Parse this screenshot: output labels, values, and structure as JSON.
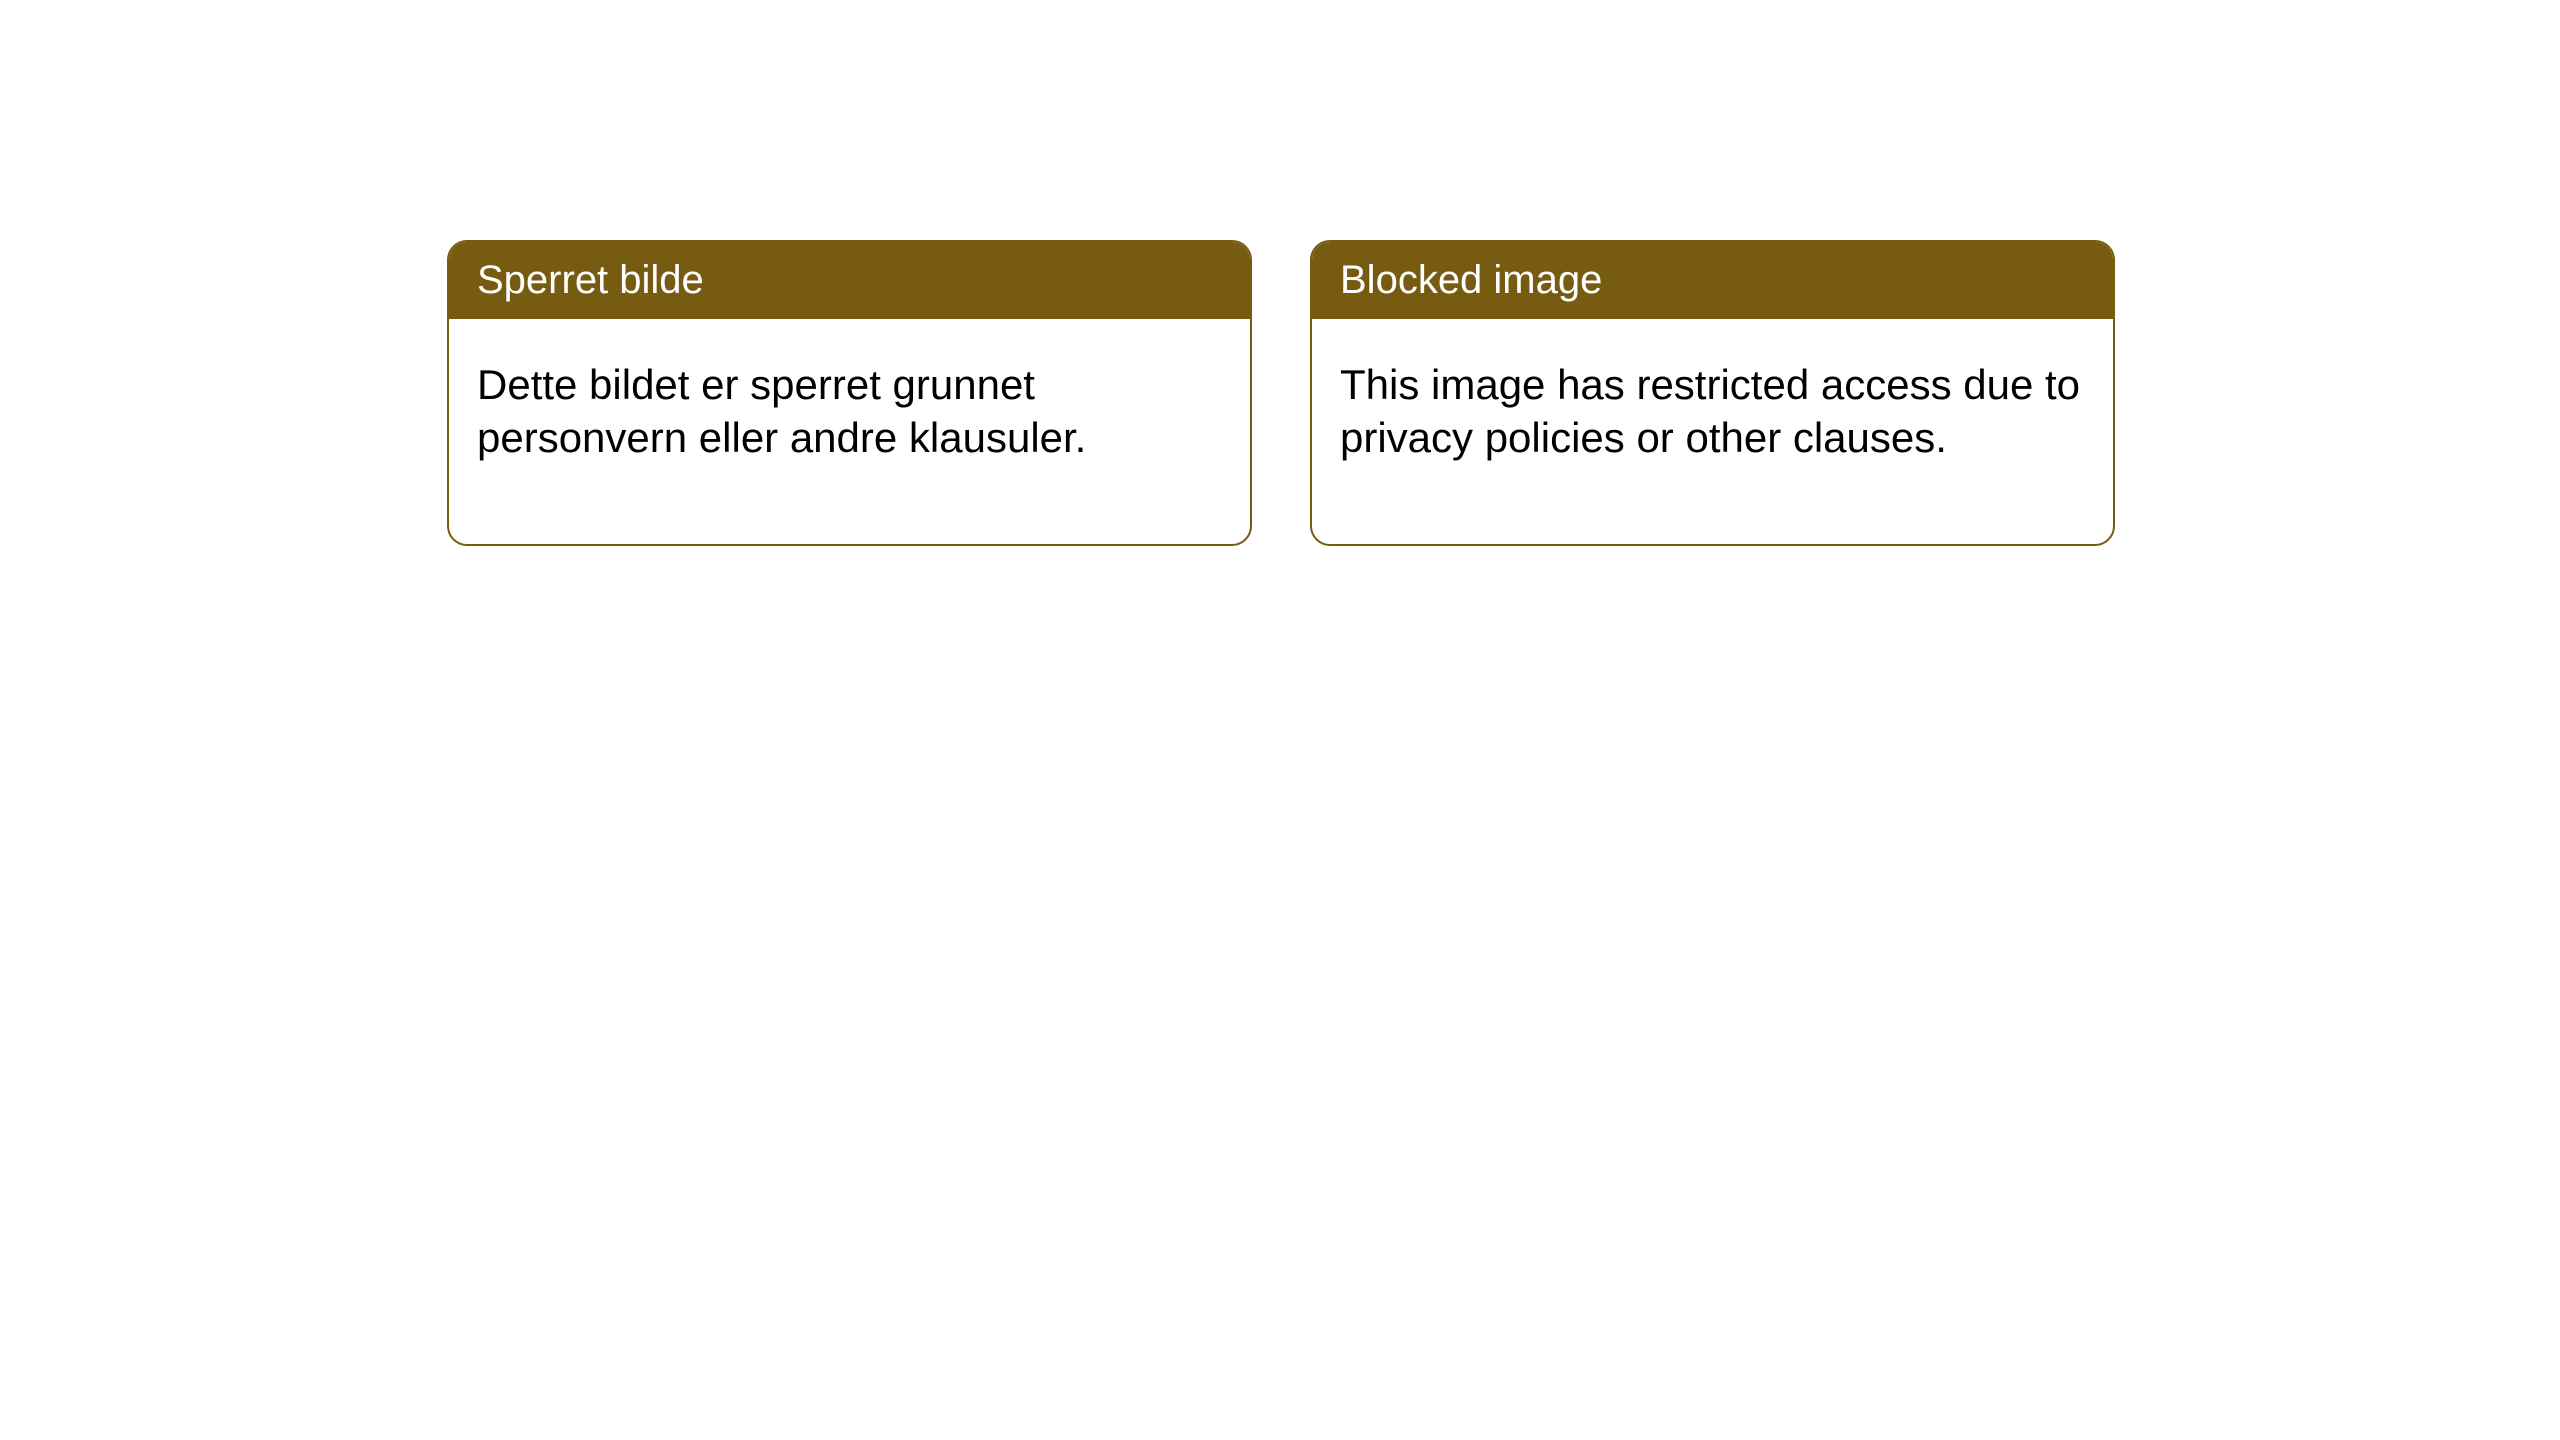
{
  "colors": {
    "header_bg": "#775b10",
    "header_text": "#ffffff",
    "card_border": "#775b10",
    "body_text": "#000000",
    "background": "#ffffff"
  },
  "cards": [
    {
      "title": "Sperret bilde",
      "body": "Dette bildet er sperret grunnet personvern eller andre klausuler."
    },
    {
      "title": "Blocked image",
      "body": "This image has restricted access due to privacy policies or other clauses."
    }
  ]
}
